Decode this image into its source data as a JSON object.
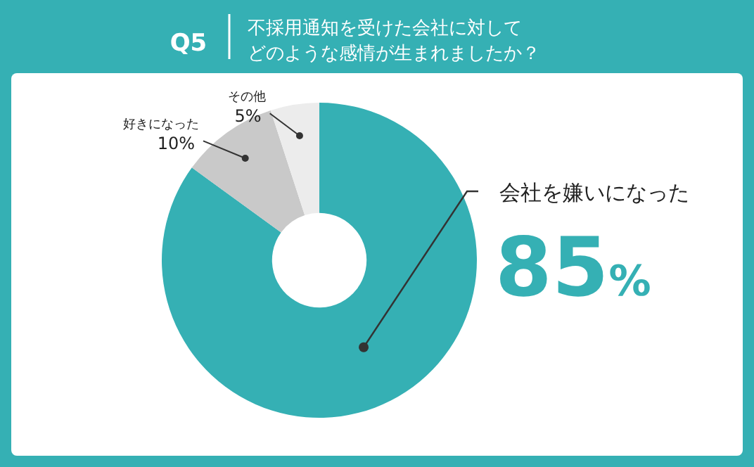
{
  "chart_data": {
    "type": "donut",
    "title": "Q5",
    "subtitle": "不採用通知を受けた会社に対してどのような感情が生まれましたか？",
    "categories": [
      "会社を嫌いになった",
      "好きになった",
      "その他"
    ],
    "values": [
      85,
      10,
      5
    ],
    "colors": [
      "#35b0b4",
      "#c9c9c9",
      "#ececec"
    ],
    "value_labels": [
      "85%",
      "10%",
      "5%"
    ]
  }
}
